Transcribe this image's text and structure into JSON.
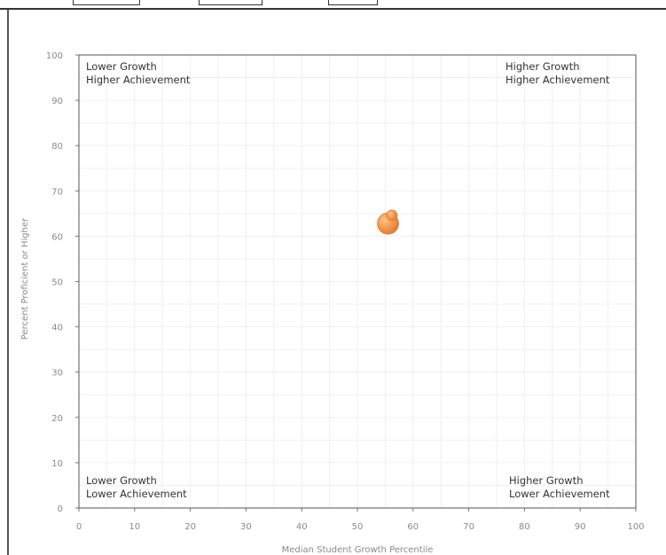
{
  "chart_data": {
    "type": "scatter",
    "title": "",
    "xlabel": "Median Student Growth Percentile",
    "ylabel": "Percent Proficient or Higher",
    "xlim": [
      0,
      100
    ],
    "ylim": [
      0,
      100
    ],
    "xticks": [
      0,
      10,
      20,
      30,
      40,
      50,
      60,
      70,
      80,
      90,
      100
    ],
    "yticks": [
      0,
      10,
      20,
      30,
      40,
      50,
      60,
      70,
      80,
      90,
      100
    ],
    "grid": true,
    "quadrant_labels": {
      "top_left": [
        "Lower Growth",
        "Higher Achievement"
      ],
      "top_right": [
        "Higher Growth",
        "Higher Achievement"
      ],
      "bottom_left": [
        "Lower Growth",
        "Lower Achievement"
      ],
      "bottom_right": [
        "Higher Growth",
        "Lower Achievement"
      ]
    },
    "series": [
      {
        "points": [
          {
            "x": 55.5,
            "y": 62.8,
            "size": "large"
          },
          {
            "x": 56.2,
            "y": 64.6,
            "size": "small"
          }
        ],
        "color": "#f0964a"
      }
    ]
  }
}
